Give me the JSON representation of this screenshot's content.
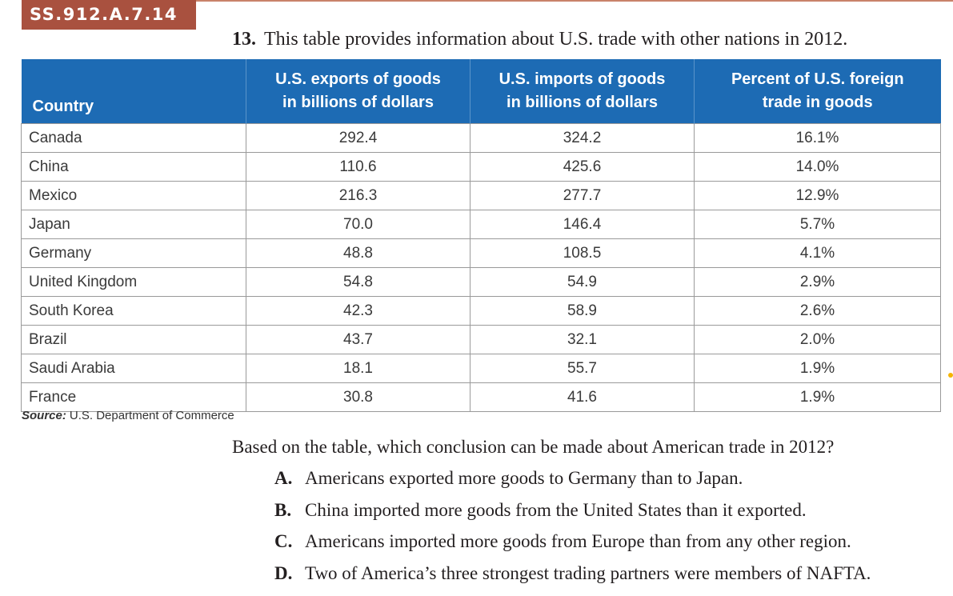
{
  "standard_code": "SS.912.A.7.14",
  "question": {
    "number": "13.",
    "text": "This table provides information about U.S. trade with other nations in 2012."
  },
  "table": {
    "headers": {
      "country": "Country",
      "exports_line1": "U.S. exports of goods",
      "exports_line2": "in billions of dollars",
      "imports_line1": "U.S. imports of goods",
      "imports_line2": "in billions of dollars",
      "percent_line1": "Percent of U.S. foreign",
      "percent_line2": "trade in goods"
    },
    "rows": [
      {
        "country": "Canada",
        "exports": "292.4",
        "imports": "324.2",
        "percent": "16.1%"
      },
      {
        "country": "China",
        "exports": "110.6",
        "imports": "425.6",
        "percent": "14.0%"
      },
      {
        "country": "Mexico",
        "exports": "216.3",
        "imports": "277.7",
        "percent": "12.9%"
      },
      {
        "country": "Japan",
        "exports": "70.0",
        "imports": "146.4",
        "percent": "5.7%"
      },
      {
        "country": "Germany",
        "exports": "48.8",
        "imports": "108.5",
        "percent": "4.1%"
      },
      {
        "country": "United Kingdom",
        "exports": "54.8",
        "imports": "54.9",
        "percent": "2.9%"
      },
      {
        "country": "South Korea",
        "exports": "42.3",
        "imports": "58.9",
        "percent": "2.6%"
      },
      {
        "country": "Brazil",
        "exports": "43.7",
        "imports": "32.1",
        "percent": "2.0%"
      },
      {
        "country": "Saudi Arabia",
        "exports": "18.1",
        "imports": "55.7",
        "percent": "1.9%"
      },
      {
        "country": "France",
        "exports": "30.8",
        "imports": "41.6",
        "percent": "1.9%"
      }
    ]
  },
  "source": {
    "label": "Source:",
    "text": "U.S. Department of Commerce"
  },
  "prompt": "Based on the table, which conclusion can be made about American trade in 2012?",
  "choices": [
    {
      "letter": "A.",
      "text": "Americans exported more goods to Germany than to Japan."
    },
    {
      "letter": "B.",
      "text": "China imported more goods from the United States than it exported."
    },
    {
      "letter": "C.",
      "text": "Americans imported more goods from Europe than from any other region."
    },
    {
      "letter": "D.",
      "text": "Two of America’s three strongest trading partners were members of NAFTA."
    }
  ],
  "colors": {
    "header_blue": "#1d6bb4",
    "tag_red": "#a9513f",
    "dot_yellow": "#f5b400"
  }
}
